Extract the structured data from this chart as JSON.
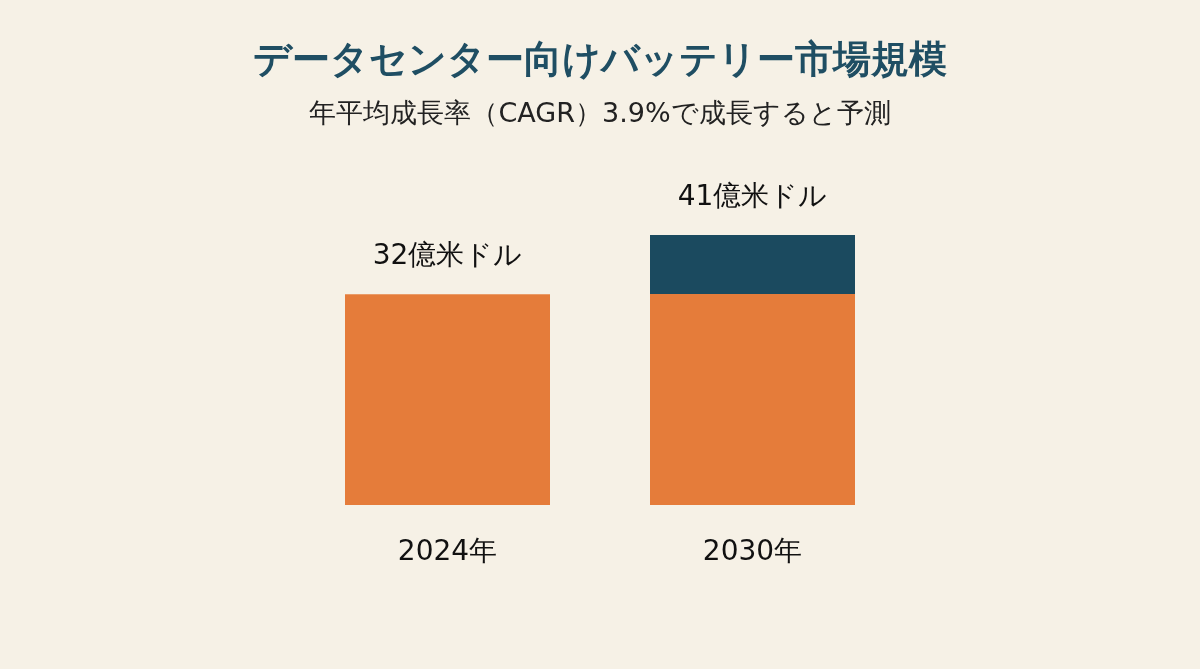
{
  "chart_data": {
    "type": "bar",
    "title": "データセンター向けバッテリー市場規模",
    "subtitle": "年平均成長率（CAGR）3.9%で成長すると予測",
    "categories": [
      "2024年",
      "2030年"
    ],
    "values": [
      32,
      41
    ],
    "colors": [
      "#e57c3a",
      "#1b4a5f"
    ],
    "value_labels": [
      "32億米ドル",
      "41億米ドル"
    ]
  }
}
